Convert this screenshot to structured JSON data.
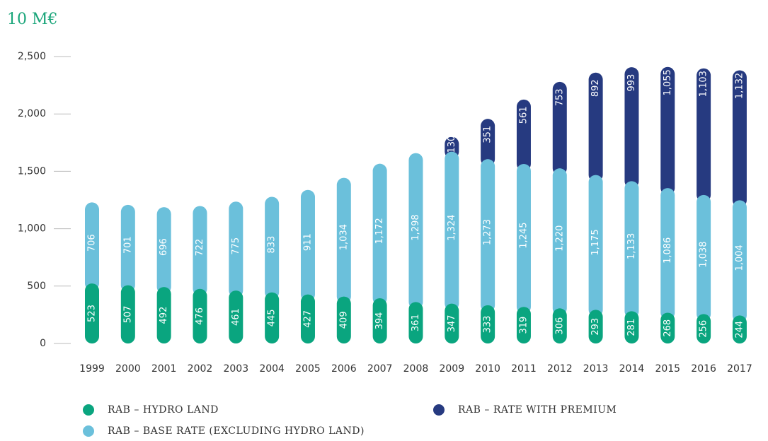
{
  "chart_data": {
    "type": "stacked_bar",
    "title": "10 M€",
    "categories": [
      "1999",
      "2000",
      "2001",
      "2002",
      "2003",
      "2004",
      "2005",
      "2006",
      "2007",
      "2008",
      "2009",
      "2010",
      "2011",
      "2012",
      "2013",
      "2014",
      "2015",
      "2016",
      "2017"
    ],
    "series": [
      {
        "name": "RAB – HYDRO LAND",
        "color": "#0aa57f",
        "values": [
          523,
          507,
          492,
          476,
          461,
          445,
          427,
          409,
          394,
          361,
          347,
          333,
          319,
          306,
          293,
          281,
          268,
          256,
          244
        ]
      },
      {
        "name": "RAB – BASE RATE (EXCLUDING HYDRO LAND)",
        "color": "#6bc0db",
        "values": [
          706,
          701,
          696,
          722,
          775,
          833,
          911,
          1034,
          1172,
          1298,
          1324,
          1273,
          1245,
          1220,
          1175,
          1133,
          1086,
          1038,
          1004
        ],
        "value_labels": [
          null,
          null,
          null,
          null,
          null,
          null,
          null,
          "1,034",
          "1,172",
          "1,298",
          "1,324",
          "1,273",
          "1,245",
          "1,220",
          "1,175",
          "1,133",
          "1,086",
          "1,038",
          "1,004"
        ]
      },
      {
        "name": "RAB – RATE WITH PREMIUM",
        "color": "#263a80",
        "values": [
          null,
          null,
          null,
          null,
          null,
          null,
          null,
          null,
          null,
          null,
          130,
          351,
          561,
          753,
          892,
          993,
          1055,
          1103,
          1132
        ],
        "value_labels": [
          null,
          null,
          null,
          null,
          null,
          null,
          null,
          null,
          null,
          null,
          null,
          null,
          null,
          null,
          null,
          null,
          "1,055",
          "1,103",
          "1,132"
        ]
      }
    ],
    "ylim": [
      0,
      2500
    ],
    "yticks": [
      0,
      500,
      {
        "value": 1000,
        "label": "1,000"
      },
      {
        "value": 1500,
        "label": "1,500"
      },
      {
        "value": 2000,
        "label": "2,000"
      },
      {
        "value": 2500,
        "label": "2,500"
      }
    ]
  }
}
